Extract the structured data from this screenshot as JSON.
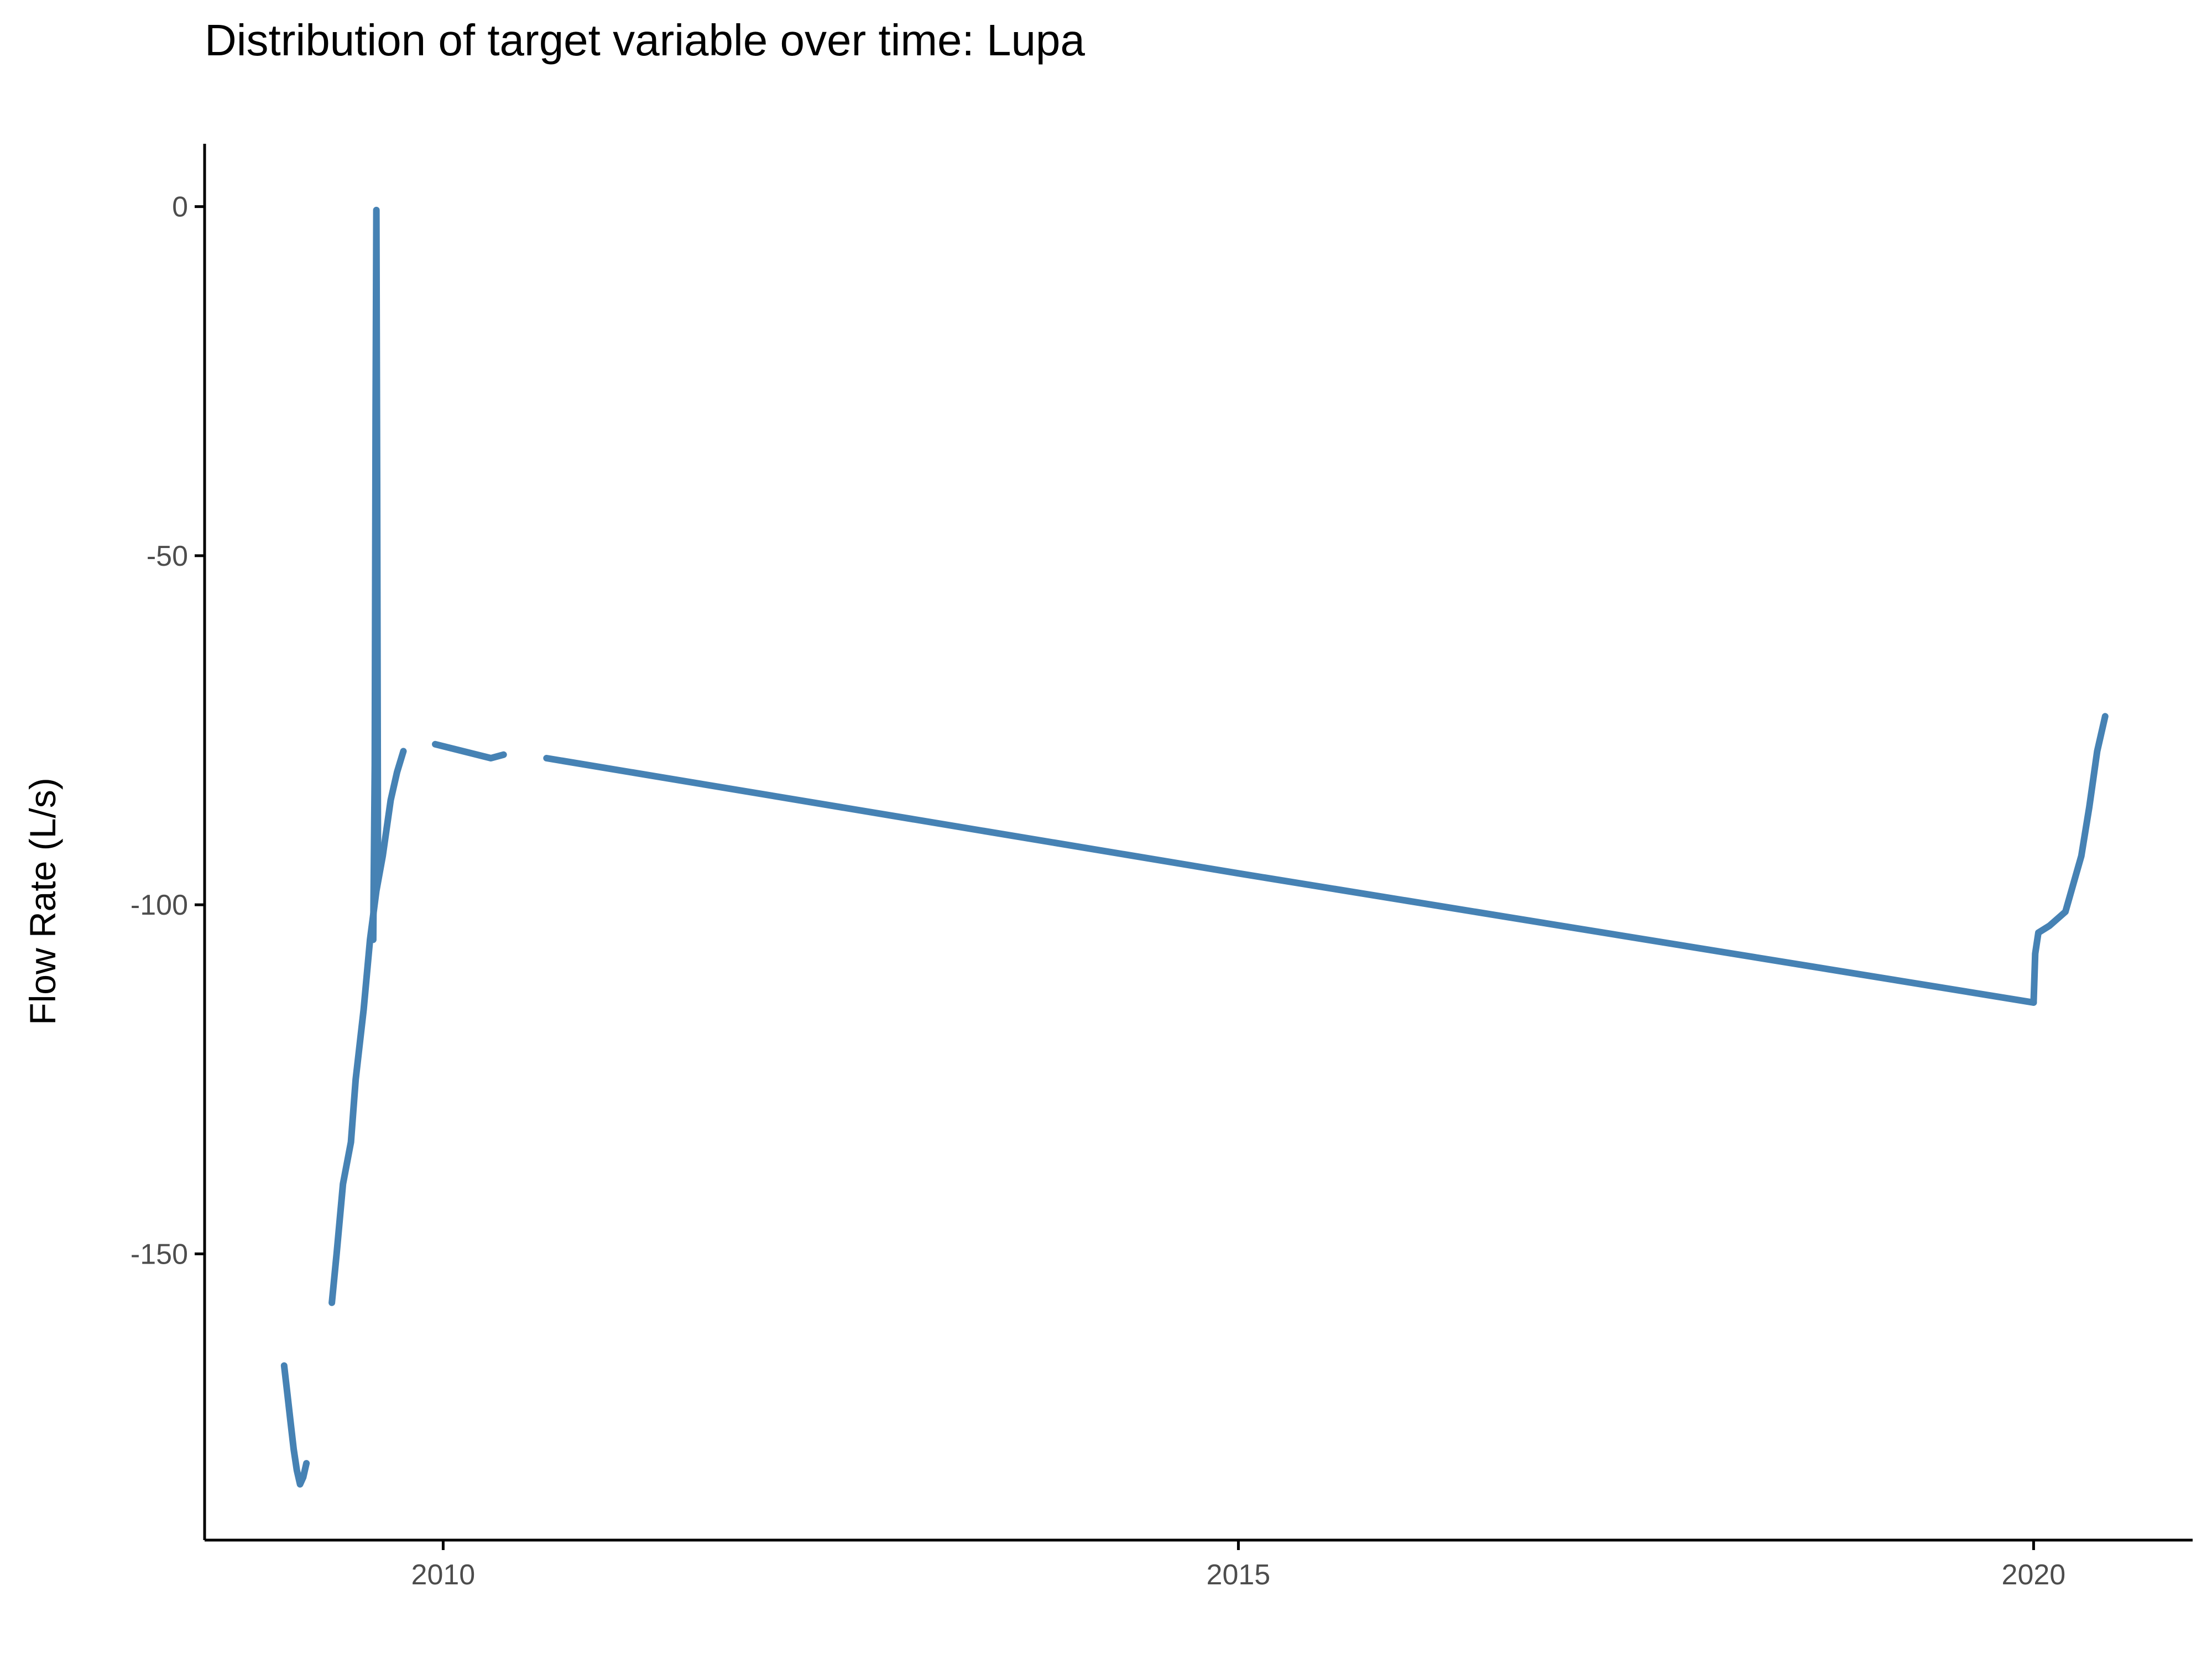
{
  "chart_data": {
    "type": "line",
    "title": "Distribution of target variable over time: Lupa",
    "xlabel": "",
    "ylabel": "Flow Rate (L/s)",
    "x_ticks": [
      2010,
      2015,
      2020
    ],
    "x_tick_labels": [
      "2010",
      "2015",
      "2020"
    ],
    "y_ticks": [
      0,
      -50,
      -100,
      -150
    ],
    "y_tick_labels": [
      "0",
      "-50",
      "-100",
      "-150"
    ],
    "xlim": [
      2008.5,
      2021.0
    ],
    "ylim": [
      -191,
      9
    ],
    "grid": false,
    "legend": "none",
    "colors": {
      "series": "#4682b4",
      "axis": "#000000",
      "tick_label": "#4d4d4d"
    },
    "series": [
      {
        "segments": [
          [
            [
              2009.0,
              -166
            ],
            [
              2009.02,
              -170
            ],
            [
              2009.04,
              -174
            ],
            [
              2009.06,
              -178
            ],
            [
              2009.08,
              -181
            ],
            [
              2009.1,
              -183
            ],
            [
              2009.12,
              -182
            ],
            [
              2009.14,
              -180
            ]
          ],
          [
            [
              2009.3,
              -157
            ],
            [
              2009.33,
              -150
            ],
            [
              2009.37,
              -140
            ],
            [
              2009.42,
              -134
            ],
            [
              2009.45,
              -125
            ],
            [
              2009.5,
              -115
            ],
            [
              2009.54,
              -105
            ],
            [
              2009.58,
              -98
            ],
            [
              2009.62,
              -93
            ],
            [
              2009.67,
              -85
            ],
            [
              2009.71,
              -81
            ],
            [
              2009.75,
              -78
            ]
          ],
          [
            [
              2009.56,
              -105
            ],
            [
              2009.57,
              -80
            ],
            [
              2009.575,
              -30
            ],
            [
              2009.58,
              -0.5
            ],
            [
              2009.585,
              -40
            ],
            [
              2009.59,
              -95
            ]
          ],
          [
            [
              2009.95,
              -77
            ],
            [
              2010.3,
              -79
            ],
            [
              2010.38,
              -78.5
            ]
          ],
          [
            [
              2010.65,
              -79
            ],
            [
              2015.0,
              -95.5
            ],
            [
              2020.0,
              -114
            ]
          ],
          [
            [
              2020.0,
              -114
            ],
            [
              2020.01,
              -107
            ],
            [
              2020.03,
              -104
            ],
            [
              2020.1,
              -103
            ],
            [
              2020.2,
              -101
            ],
            [
              2020.25,
              -97
            ],
            [
              2020.3,
              -93
            ],
            [
              2020.35,
              -86
            ],
            [
              2020.4,
              -78
            ],
            [
              2020.45,
              -73
            ]
          ]
        ]
      }
    ]
  }
}
